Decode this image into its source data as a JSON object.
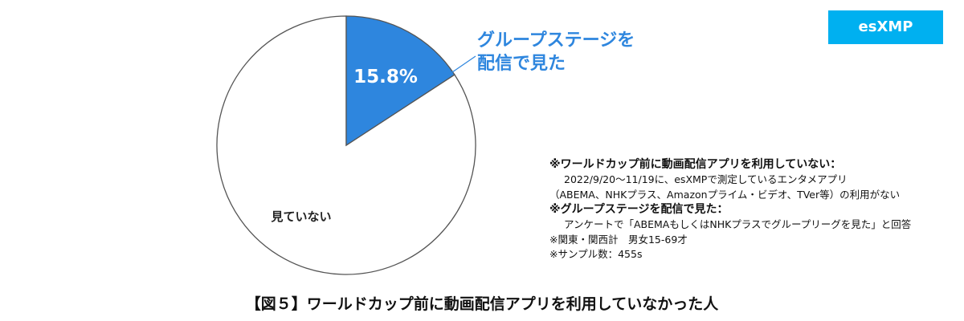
{
  "brand_label": "esXMP",
  "callout_lines": [
    "グループステージを",
    "配信で見た"
  ],
  "notes": {
    "heading1": "※ワールドカップ前に動画配信アプリを利用していない：",
    "line1": "2022/9/20〜11/19に、esXMPで測定しているエンタメアプリ",
    "line2": "（ABEMA、NHKプラス、Amazonプライム・ビデオ、TVer等）の利用がない",
    "heading2": "※グループステージを配信で見た：",
    "line3": "アンケートで「ABEMAもしくはNHKプラスでグループリーグを見た」と回答",
    "line4": "※関東・関西計　男女15-69才",
    "line5": "※サンプル数：455s"
  },
  "figure_title": "【図５】ワールドカップ前に動画配信アプリを利用していなかった人",
  "chart_data": {
    "type": "pie",
    "slices": [
      {
        "label": "グループステージを配信で見た",
        "value": 15.8,
        "display": "15.8%",
        "color": "#2e86de"
      },
      {
        "label": "見ていない",
        "value": 84.2,
        "display": "見ていない",
        "color": "#ffffff"
      }
    ],
    "start_angle_deg": 0,
    "direction": "clockwise"
  },
  "colors": {
    "accent": "#2e86de",
    "brand": "#00b0f0",
    "pie_outline": "#555555"
  }
}
